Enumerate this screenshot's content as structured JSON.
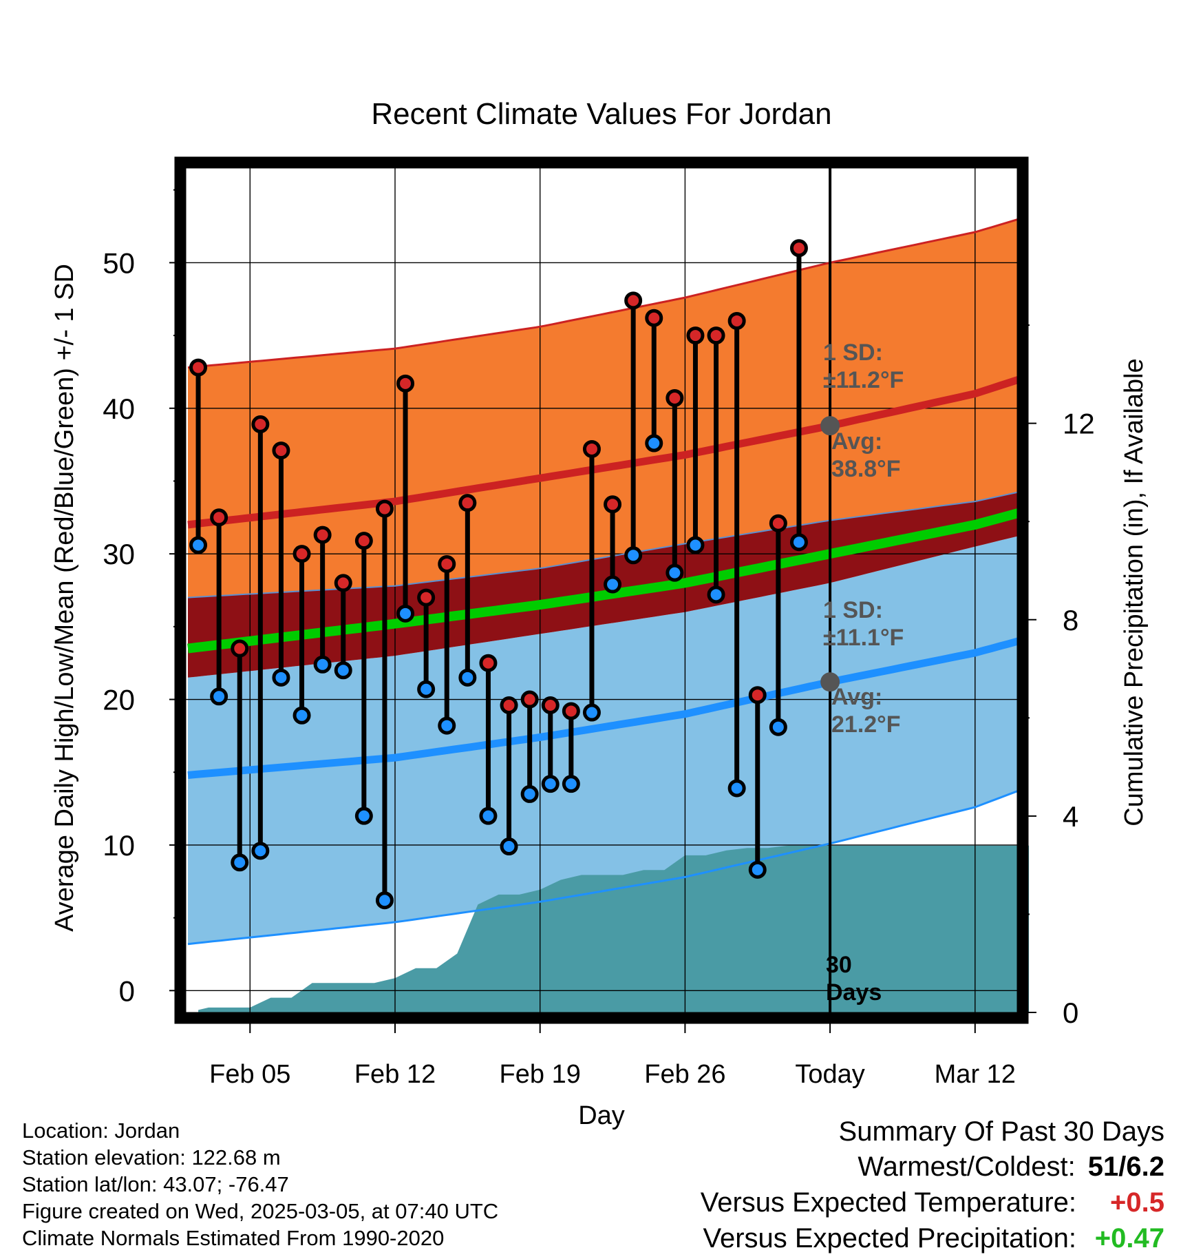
{
  "chart_data": {
    "type": "line",
    "title": "Recent Climate Values For Jordan",
    "xlabel": "Day",
    "ylabel_left": "Average Daily High/Low/Mean (Red/Blue/Green) +/- 1 SD",
    "ylabel_right": "Cumulative Precipitation (in), If Available",
    "ylim_left": [
      -1.5,
      56.5
    ],
    "ylim_right": [
      0,
      17.2
    ],
    "y_ticks_left": [
      0,
      10,
      20,
      30,
      40,
      50
    ],
    "y_ticks_right": [
      0,
      4,
      8,
      12
    ],
    "x_ticks": [
      {
        "day": 3,
        "label": "Feb 05"
      },
      {
        "day": 10,
        "label": "Feb 12"
      },
      {
        "day": 17,
        "label": "Feb 19"
      },
      {
        "day": 24,
        "label": "Feb 26"
      },
      {
        "day": 31,
        "label": "Today"
      },
      {
        "day": 38,
        "label": "Mar 12"
      }
    ],
    "today_day": 31,
    "x_range": [
      0,
      40.6
    ],
    "normals": {
      "day": [
        0,
        10,
        17,
        24,
        31,
        38,
        40.6
      ],
      "high_avg": [
        32.0,
        33.6,
        35.2,
        36.8,
        38.8,
        41.0,
        42.2
      ],
      "high_upper": [
        42.8,
        44.1,
        45.6,
        47.6,
        50.0,
        52.1,
        53.2
      ],
      "high_lower": [
        27.0,
        27.8,
        29.0,
        30.7,
        32.3,
        33.6,
        34.4
      ],
      "low_avg": [
        14.8,
        16.0,
        17.4,
        19.0,
        21.2,
        23.2,
        24.2
      ],
      "low_upper": [
        21.5,
        23.0,
        24.5,
        26.0,
        28.0,
        30.5,
        31.4
      ],
      "low_lower": [
        3.2,
        4.7,
        6.1,
        7.8,
        10.1,
        12.6,
        14.0
      ],
      "mean_avg": [
        23.5,
        25.2,
        26.5,
        28.0,
        30.0,
        32.0,
        33.0
      ]
    },
    "series": [
      {
        "name": "High",
        "color": "#d62728",
        "values": [
          42.8,
          32.5,
          23.5,
          38.9,
          37.1,
          30.0,
          31.3,
          28.0,
          30.9,
          33.1,
          41.7,
          27.0,
          29.3,
          33.5,
          22.5,
          19.6,
          20.0,
          19.6,
          19.2,
          37.2,
          33.4,
          47.4,
          46.2,
          40.7,
          45.0,
          45.0,
          46.0,
          20.3,
          32.1,
          51.0
        ]
      },
      {
        "name": "Low",
        "color": "#1e90ff",
        "values": [
          30.6,
          20.2,
          8.8,
          9.6,
          21.5,
          18.9,
          22.4,
          22.0,
          12.0,
          6.2,
          25.9,
          20.7,
          18.2,
          21.5,
          12.0,
          9.9,
          13.5,
          14.2,
          14.2,
          19.1,
          27.9,
          29.9,
          37.6,
          28.7,
          30.6,
          27.2,
          13.9,
          8.3,
          18.1,
          30.8
        ]
      },
      {
        "name": "Cumulative Precipitation",
        "color": "#4a9ba5",
        "days": [
          0.5,
          1,
          2,
          3,
          4,
          5,
          6,
          7,
          8,
          9,
          10,
          11,
          12,
          13,
          14,
          15,
          16,
          17,
          18,
          19,
          20,
          21,
          22,
          23,
          24,
          25,
          26,
          27,
          28,
          29,
          30,
          40.6
        ],
        "values": [
          0.05,
          0.1,
          0.1,
          0.1,
          0.3,
          0.3,
          0.6,
          0.6,
          0.6,
          0.6,
          0.7,
          0.9,
          0.9,
          1.2,
          2.2,
          2.4,
          2.4,
          2.5,
          2.7,
          2.8,
          2.8,
          2.8,
          2.9,
          2.9,
          3.2,
          3.2,
          3.3,
          3.35,
          3.35,
          3.4,
          3.4,
          3.4
        ]
      }
    ],
    "annotations": {
      "high_sd": {
        "l1": "1 SD:",
        "l2": "±11.2°F"
      },
      "high_avg": {
        "l1": "Avg:",
        "l2": "38.8°F"
      },
      "low_sd": {
        "l1": "1 SD:",
        "l2": "±11.1°F"
      },
      "low_avg": {
        "l1": "Avg:",
        "l2": "21.2°F"
      },
      "window": {
        "l1": "30",
        "l2": "Days"
      }
    },
    "colors": {
      "high_band": "#f47b2f",
      "high_line": "#cc2222",
      "low_band": "#84c1e6",
      "low_line": "#1e90ff",
      "overlap": "#8e1015",
      "mean": "#00cc00",
      "precip": "#4a9ba5",
      "annotation": "#555555"
    }
  },
  "info": {
    "location": "Location: Jordan",
    "elevation": "Station elevation: 122.68 m",
    "latlon": "Station lat/lon: 43.07; -76.47",
    "created": "Figure created on Wed, 2025-03-05, at 07:40 UTC",
    "normals": "Climate Normals Estimated From 1990-2020"
  },
  "summary": {
    "title": "Summary Of Past 30 Days",
    "warmest_label": "Warmest/Coldest:",
    "warmest_value": "51/6.2",
    "temp_label": "Versus Expected Temperature:",
    "temp_value": "+0.5",
    "temp_color": "#d62728",
    "precip_label": "Versus Expected Precipitation:",
    "precip_value": "+0.47",
    "precip_color": "#22bb22"
  }
}
